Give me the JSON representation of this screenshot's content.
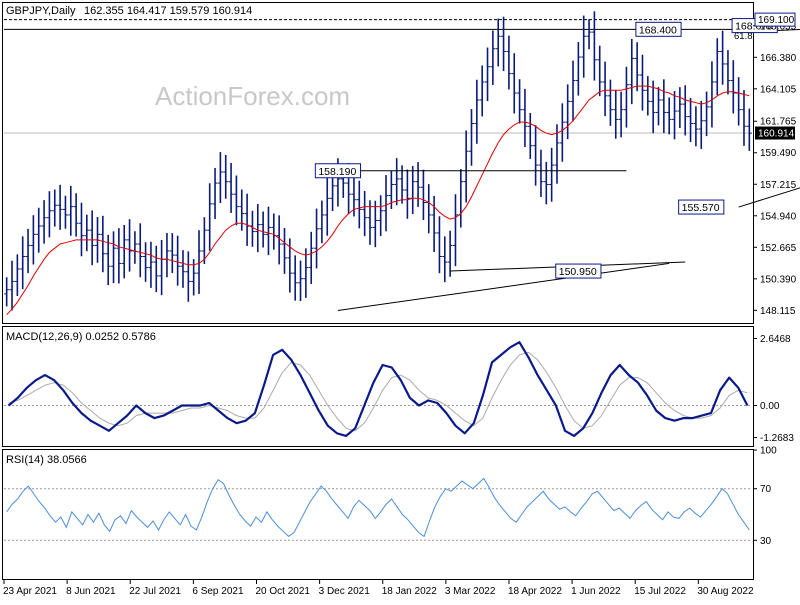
{
  "header": {
    "symbol_label": "GBPJPY,Daily",
    "ohlc_label": "162.355 164.417 159.579 160.914"
  },
  "watermark": "ActionForex.com",
  "colors": {
    "price_bar": "#0a1a7a",
    "sma": "#e00000",
    "macd_line": "#0a1a8a",
    "macd_signal": "#aaaaaa",
    "rsi": "#4a8fd8",
    "trendline": "#000000",
    "label_border": "#0a1a8a",
    "current_price_bg": "#000000",
    "grid_dash": "#999999"
  },
  "chart_data": [
    {
      "type": "bar",
      "name": "GBPJPY Daily OHLC",
      "ylim": [
        147.2,
        170.3
      ],
      "y_ticks": [
        "169.100",
        "168.655",
        "166.380",
        "164.105",
        "161.765",
        "160.914",
        "159.490",
        "157.215",
        "154.940",
        "152.665",
        "150.390",
        "148.115"
      ],
      "x_ticks": [
        "23 Apr 2021",
        "8 Jun 2021",
        "22 Jul 2021",
        "6 Sep 2021",
        "20 Oct 2021",
        "3 Dec 2021",
        "18 Jan 2022",
        "3 Mar 2022",
        "18 Apr 2022",
        "1 Jun 2022",
        "15 Jul 2022",
        "30 Aug 2022"
      ],
      "current_price": "160.914",
      "close": [
        149.6,
        150.2,
        151.1,
        152.0,
        152.8,
        153.6,
        154.2,
        154.8,
        155.3,
        155.7,
        155.4,
        155.0,
        155.6,
        154.4,
        153.5,
        153.9,
        152.8,
        153.6,
        152.2,
        151.3,
        152.6,
        151.5,
        153.2,
        152.4,
        152.9,
        152.0,
        151.2,
        151.6,
        150.6,
        151.8,
        152.4,
        152.1,
        151.3,
        150.9,
        150.2,
        150.8,
        152.4,
        153.9,
        155.8,
        157.3,
        158.1,
        157.4,
        156.5,
        155.6,
        155.1,
        154.2,
        153.8,
        154.3,
        153.6,
        154.1,
        153.5,
        152.9,
        151.9,
        150.8,
        150.1,
        150.4,
        151.2,
        152.6,
        154.0,
        155.0,
        156.2,
        157.1,
        157.6,
        157.3,
        156.5,
        156.1,
        155.4,
        154.8,
        154.1,
        154.6,
        155.3,
        156.4,
        157.2,
        157.6,
        156.8,
        156.2,
        157.4,
        157.0,
        155.9,
        155.0,
        153.7,
        152.0,
        151.6,
        152.8,
        155.0,
        157.4,
        159.6,
        161.6,
        163.3,
        164.6,
        165.7,
        167.0,
        167.9,
        166.8,
        165.2,
        163.8,
        162.6,
        161.4,
        160.0,
        158.6,
        157.4,
        157.2,
        158.6,
        160.2,
        161.7,
        163.2,
        164.7,
        166.4,
        167.9,
        168.2,
        166.2,
        164.6,
        163.6,
        162.6,
        161.9,
        162.6,
        164.4,
        166.3,
        165.1,
        164.0,
        163.2,
        162.4,
        163.3,
        162.4,
        161.9,
        162.5,
        163.0,
        162.1,
        161.6,
        161.2,
        161.8,
        162.8,
        164.6,
        166.8,
        165.9,
        164.7,
        163.8,
        162.6,
        161.4,
        160.9
      ],
      "sma_close": [
        147.8,
        148.2,
        148.7,
        149.3,
        149.9,
        150.6,
        151.2,
        151.8,
        152.3,
        152.6,
        152.9,
        153.0,
        153.1,
        153.2,
        153.2,
        153.2,
        153.2,
        153.2,
        153.1,
        153.0,
        152.9,
        152.7,
        152.6,
        152.5,
        152.4,
        152.3,
        152.2,
        152.1,
        151.9,
        151.8,
        151.8,
        151.7,
        151.6,
        151.5,
        151.4,
        151.4,
        151.5,
        151.8,
        152.3,
        152.9,
        153.4,
        153.9,
        154.2,
        154.4,
        154.4,
        154.3,
        154.1,
        153.9,
        153.8,
        153.7,
        153.6,
        153.3,
        153.0,
        152.7,
        152.4,
        152.2,
        152.1,
        152.2,
        152.4,
        152.7,
        153.1,
        153.6,
        154.2,
        154.7,
        155.1,
        155.4,
        155.5,
        155.6,
        155.6,
        155.6,
        155.6,
        155.7,
        155.9,
        156.0,
        156.1,
        156.1,
        156.2,
        156.2,
        156.1,
        155.9,
        155.6,
        155.2,
        154.9,
        154.7,
        154.8,
        155.1,
        155.6,
        156.3,
        157.1,
        157.9,
        158.7,
        159.5,
        160.2,
        160.8,
        161.2,
        161.5,
        161.7,
        161.7,
        161.6,
        161.4,
        161.1,
        160.9,
        160.8,
        160.9,
        161.1,
        161.4,
        161.8,
        162.3,
        162.8,
        163.3,
        163.6,
        163.9,
        164.0,
        164.0,
        164.0,
        164.0,
        164.1,
        164.2,
        164.3,
        164.3,
        164.3,
        164.2,
        164.1,
        163.9,
        163.8,
        163.6,
        163.5,
        163.3,
        163.2,
        163.1,
        163.0,
        163.1,
        163.3,
        163.6,
        163.8,
        163.9,
        163.9,
        163.8,
        163.7,
        163.6
      ],
      "annotations": [
        "158.190",
        "150.950",
        "168.400",
        "168.670",
        "169.100",
        "155.570",
        "159.420",
        "61.8"
      ]
    },
    {
      "type": "line",
      "name": "MACD",
      "label": "MACD(12,26,9) 0.0252 0.5786",
      "ylim": [
        -1.6,
        3.1
      ],
      "y_ticks": [
        "2.6468",
        "0.00",
        "-1.2683"
      ],
      "x_ticks": [
        "23 Apr 2021",
        "8 Jun 2021",
        "22 Jul 2021",
        "6 Sep 2021",
        "20 Oct 2021",
        "3 Dec 2021",
        "18 Jan 2022",
        "3 Mar 2022",
        "18 Apr 2022",
        "1 Jun 2022",
        "15 Jul 2022",
        "30 Aug 2022"
      ],
      "macd": [
        0.0,
        0.3,
        0.7,
        1.0,
        1.2,
        1.0,
        0.6,
        0.1,
        -0.3,
        -0.6,
        -0.8,
        -1.0,
        -0.7,
        -0.4,
        0.0,
        -0.3,
        -0.5,
        -0.4,
        -0.2,
        0.0,
        0.0,
        0.0,
        0.1,
        -0.2,
        -0.5,
        -0.7,
        -0.6,
        -0.3,
        0.8,
        2.0,
        2.2,
        1.8,
        1.2,
        0.5,
        -0.2,
        -0.8,
        -1.1,
        -1.2,
        -0.9,
        0.0,
        0.9,
        1.6,
        1.5,
        1.0,
        0.3,
        0.0,
        0.2,
        0.1,
        -0.3,
        -0.8,
        -1.1,
        -0.7,
        0.4,
        1.7,
        2.0,
        2.3,
        2.5,
        1.9,
        1.2,
        0.6,
        0.0,
        -1.0,
        -1.2,
        -0.9,
        -0.3,
        0.5,
        1.2,
        1.6,
        1.2,
        0.9,
        0.4,
        -0.2,
        -0.5,
        -0.6,
        -0.5,
        -0.5,
        -0.4,
        -0.3,
        0.6,
        1.1,
        0.7,
        0.0
      ],
      "signal": [
        0.1,
        0.2,
        0.4,
        0.6,
        0.8,
        0.9,
        0.8,
        0.5,
        0.1,
        -0.2,
        -0.5,
        -0.7,
        -0.8,
        -0.7,
        -0.4,
        -0.3,
        -0.3,
        -0.3,
        -0.3,
        -0.2,
        -0.1,
        -0.1,
        0.0,
        -0.1,
        -0.2,
        -0.4,
        -0.5,
        -0.5,
        -0.1,
        0.6,
        1.3,
        1.7,
        1.6,
        1.2,
        0.6,
        0.0,
        -0.5,
        -0.9,
        -1.0,
        -0.7,
        -0.1,
        0.6,
        1.1,
        1.2,
        1.0,
        0.6,
        0.3,
        0.2,
        0.0,
        -0.3,
        -0.6,
        -0.8,
        -0.5,
        0.3,
        1.0,
        1.6,
        2.0,
        2.1,
        1.8,
        1.3,
        0.7,
        0.0,
        -0.6,
        -0.9,
        -0.8,
        -0.4,
        0.2,
        0.8,
        1.1,
        1.1,
        0.9,
        0.5,
        0.1,
        -0.2,
        -0.4,
        -0.5,
        -0.5,
        -0.4,
        -0.1,
        0.4,
        0.6,
        0.5
      ]
    },
    {
      "type": "line",
      "name": "RSI",
      "label": "RSI(14) 38.0566",
      "ylim": [
        0,
        100
      ],
      "y_ticks": [
        "100",
        "70",
        "30",
        "0"
      ],
      "levels": [
        70,
        30
      ],
      "x_ticks": [
        "23 Apr 2021",
        "8 Jun 2021",
        "22 Jul 2021",
        "6 Sep 2021",
        "20 Oct 2021",
        "3 Dec 2021",
        "18 Jan 2022",
        "3 Mar 2022",
        "18 Apr 2022",
        "1 Jun 2022",
        "15 Jul 2022",
        "30 Aug 2022"
      ],
      "rsi": [
        52,
        58,
        62,
        68,
        72,
        66,
        60,
        55,
        49,
        44,
        48,
        40,
        52,
        47,
        42,
        50,
        44,
        51,
        42,
        37,
        46,
        49,
        43,
        53,
        48,
        44,
        40,
        45,
        38,
        46,
        52,
        47,
        42,
        50,
        41,
        38,
        48,
        60,
        70,
        77,
        74,
        65,
        57,
        50,
        45,
        41,
        48,
        44,
        52,
        46,
        41,
        37,
        33,
        36,
        44,
        52,
        60,
        66,
        72,
        68,
        62,
        57,
        52,
        47,
        56,
        61,
        57,
        53,
        47,
        52,
        58,
        62,
        56,
        50,
        46,
        41,
        36,
        33,
        45,
        56,
        64,
        70,
        68,
        72,
        76,
        73,
        70,
        74,
        78,
        71,
        63,
        57,
        52,
        47,
        44,
        50,
        56,
        60,
        64,
        68,
        62,
        58,
        54,
        56,
        52,
        49,
        55,
        60,
        66,
        68,
        63,
        58,
        53,
        55,
        51,
        47,
        53,
        57,
        60,
        54,
        50,
        46,
        52,
        48,
        47,
        52,
        55,
        51,
        48,
        53,
        58,
        64,
        70,
        66,
        58,
        50,
        44,
        38
      ]
    }
  ]
}
